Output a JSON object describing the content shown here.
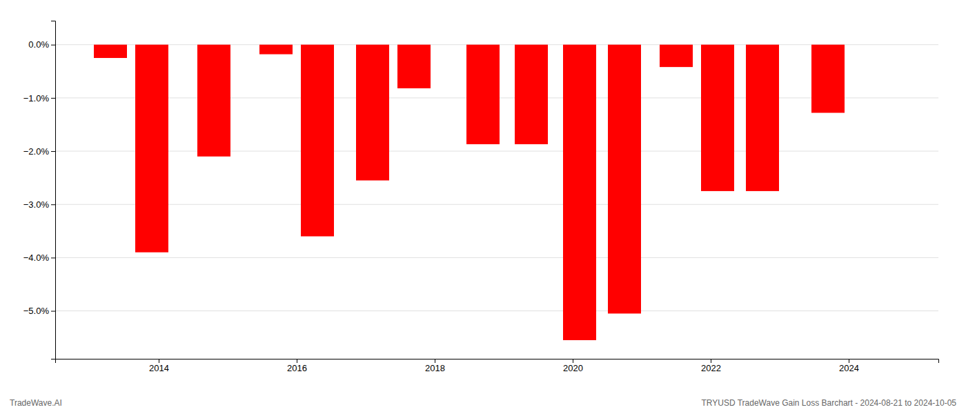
{
  "chart_data": {
    "type": "bar",
    "title": "TRYUSD TradeWave Gain Loss Barchart - 2024-08-21 to 2024-10-05",
    "annotations": [
      "TradeWave.AI"
    ],
    "x": [
      2013.3,
      2013.9,
      2014.8,
      2015.7,
      2016.3,
      2017.1,
      2017.7,
      2018.7,
      2019.4,
      2020.1,
      2020.75,
      2021.5,
      2022.1,
      2022.75,
      2023.7
    ],
    "values": [
      -0.25,
      -3.9,
      -2.1,
      -0.18,
      -3.6,
      -2.55,
      -0.82,
      -1.87,
      -1.87,
      -5.55,
      -5.05,
      -0.42,
      -2.75,
      -2.75,
      -1.28
    ],
    "color": "#ff0000",
    "xlim": [
      2012.5,
      2025.3
    ],
    "xticks": [
      2014,
      2016,
      2018,
      2020,
      2022,
      2024
    ],
    "ylim": [
      -5.9,
      0.45
    ],
    "yticks": [
      {
        "value": 0.0,
        "label": "0.0%"
      },
      {
        "value": -1.0,
        "label": "−1.0%"
      },
      {
        "value": -2.0,
        "label": "−2.0%"
      },
      {
        "value": -3.0,
        "label": "−3.0%"
      },
      {
        "value": -4.0,
        "label": "−4.0%"
      },
      {
        "value": -5.0,
        "label": "−5.0%"
      }
    ],
    "grid": true
  }
}
